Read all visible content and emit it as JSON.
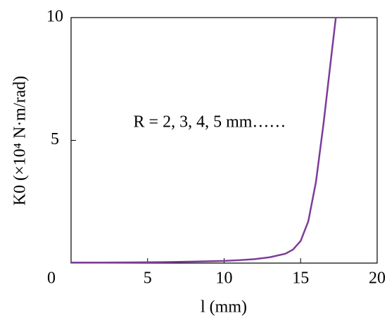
{
  "chart_data": {
    "type": "line",
    "x_label": "l (mm)",
    "y_label": "K0 (×10⁴ N·m/rad)",
    "annotation": "R = 2, 3, 4, 5 mm……",
    "x": [
      0,
      2,
      4,
      6,
      8,
      10,
      11,
      12,
      13,
      14,
      14.5,
      15,
      15.5,
      16,
      16.5,
      17,
      17.3
    ],
    "series": [
      {
        "color": "#7d3c98",
        "values": [
          0.02,
          0.02,
          0.03,
          0.04,
          0.06,
          0.09,
          0.12,
          0.16,
          0.24,
          0.38,
          0.55,
          0.9,
          1.7,
          3.3,
          5.7,
          8.4,
          10
        ]
      }
    ],
    "xlim": [
      0,
      20
    ],
    "ylim": [
      0,
      10
    ],
    "xticks": [
      5,
      10,
      15,
      20
    ],
    "yticks": [
      0,
      5,
      10
    ]
  }
}
